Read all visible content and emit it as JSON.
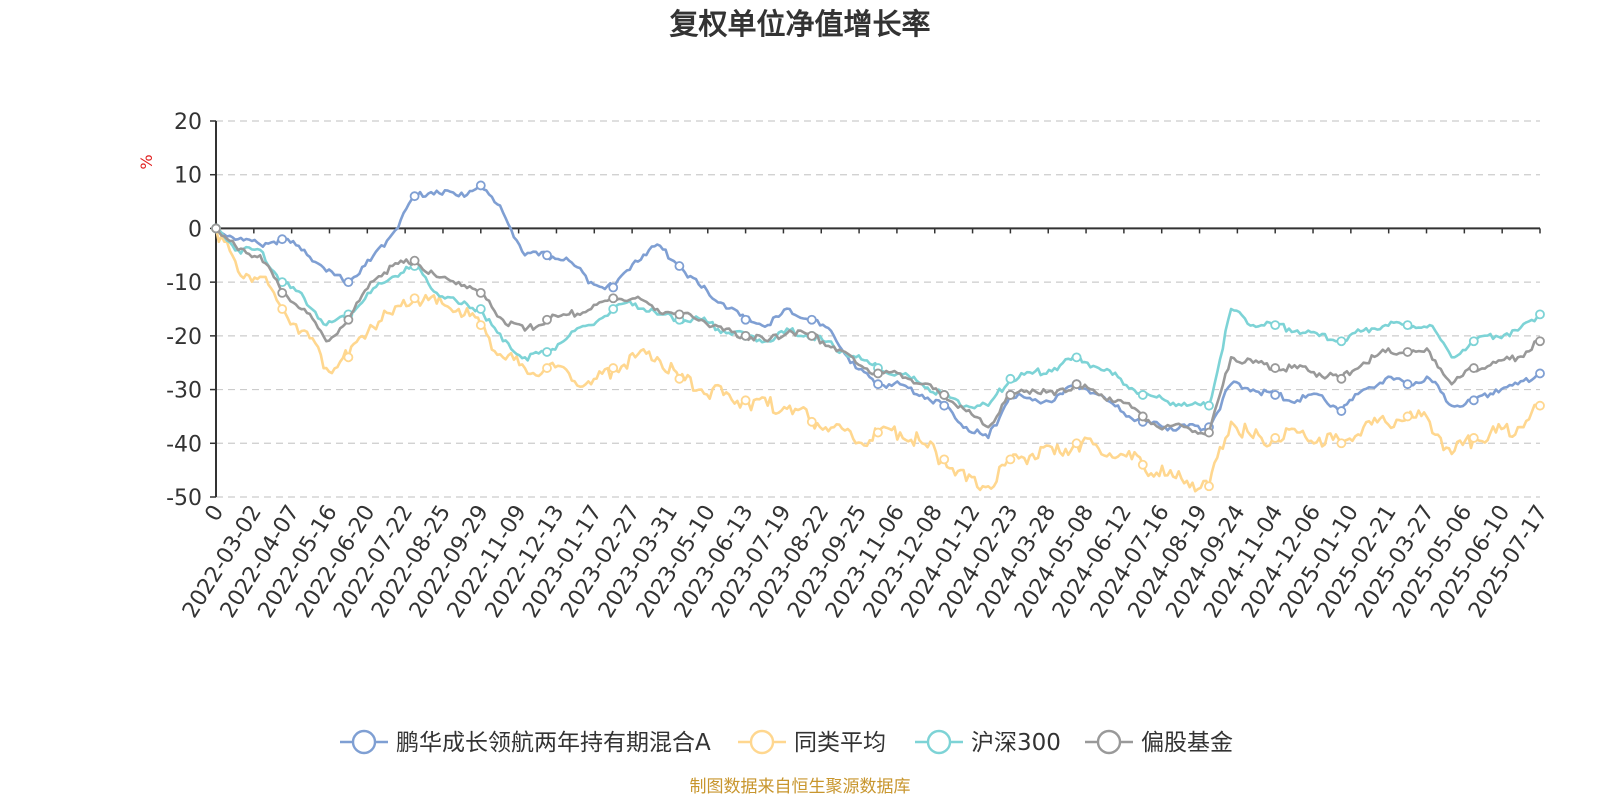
{
  "chart_data": {
    "type": "line",
    "title": "复权单位净值增长率",
    "ylabel": "%",
    "ylim": [
      -50,
      20
    ],
    "yticks": [
      20,
      10,
      0,
      -10,
      -20,
      -30,
      -40,
      -50
    ],
    "grid": true,
    "legend_position": "bottom",
    "x_tick_labels": [
      "0",
      "2022-03-02",
      "2022-04-07",
      "2022-05-16",
      "2022-06-20",
      "2022-07-22",
      "2022-08-25",
      "2022-09-29",
      "2022-11-09",
      "2022-12-13",
      "2023-01-17",
      "2023-02-27",
      "2023-03-31",
      "2023-05-10",
      "2023-06-13",
      "2023-07-19",
      "2023-08-22",
      "2023-09-25",
      "2023-11-06",
      "2023-12-08",
      "2024-01-12",
      "2024-02-23",
      "2024-03-28",
      "2024-05-08",
      "2024-06-12",
      "2024-07-16",
      "2024-08-19",
      "2024-09-24",
      "2024-11-04",
      "2024-12-06",
      "2025-01-10",
      "2025-02-21",
      "2025-03-27",
      "2025-05-06",
      "2025-06-10",
      "2025-07-17"
    ],
    "series": [
      {
        "name": "鹏华成长领航两年持有期混合A",
        "color": "#7f9fd3",
        "values": [
          0,
          -2,
          -3,
          -2,
          -4,
          -8,
          -10,
          -6,
          -1,
          6,
          7,
          6,
          8,
          3,
          -5,
          -5,
          -6,
          -10,
          -11,
          -6,
          -3,
          -7,
          -11,
          -14,
          -17,
          -18,
          -15,
          -17,
          -20,
          -26,
          -29,
          -29,
          -31,
          -33,
          -37,
          -39,
          -31,
          -32,
          -32,
          -29,
          -31,
          -34,
          -36,
          -37,
          -37,
          -37,
          -29,
          -30,
          -31,
          -32,
          -31,
          -34,
          -30,
          -28,
          -29,
          -28,
          -33,
          -32,
          -30,
          -29,
          -27
        ]
      },
      {
        "name": "同类平均",
        "color": "#ffd78f",
        "values": [
          0,
          -8,
          -9,
          -15,
          -19,
          -26,
          -24,
          -18,
          -16,
          -13,
          -14,
          -15,
          -18,
          -24,
          -26,
          -26,
          -27,
          -29,
          -26,
          -24,
          -24,
          -28,
          -30,
          -31,
          -32,
          -33,
          -33,
          -36,
          -37,
          -40,
          -38,
          -38,
          -40,
          -43,
          -47,
          -48,
          -43,
          -42,
          -42,
          -40,
          -41,
          -42,
          -44,
          -46,
          -47,
          -48,
          -36,
          -39,
          -39,
          -38,
          -39,
          -40,
          -37,
          -36,
          -35,
          -36,
          -42,
          -39,
          -38,
          -37,
          -33
        ]
      },
      {
        "name": "沪深300",
        "color": "#7dd3d6",
        "values": [
          0,
          -4,
          -4,
          -10,
          -13,
          -18,
          -16,
          -12,
          -9,
          -7,
          -12,
          -14,
          -15,
          -21,
          -24,
          -23,
          -20,
          -18,
          -15,
          -14,
          -16,
          -17,
          -17,
          -19,
          -20,
          -21,
          -19,
          -20,
          -22,
          -24,
          -26,
          -27,
          -29,
          -31,
          -33,
          -33,
          -28,
          -27,
          -26,
          -24,
          -26,
          -28,
          -31,
          -32,
          -33,
          -33,
          -15,
          -18,
          -18,
          -19,
          -20,
          -21,
          -19,
          -18,
          -18,
          -18,
          -24,
          -21,
          -20,
          -19,
          -16
        ]
      },
      {
        "name": "偏股基金",
        "color": "#999999",
        "values": [
          0,
          -4,
          -5,
          -12,
          -15,
          -21,
          -17,
          -10,
          -7,
          -6,
          -9,
          -10,
          -12,
          -17,
          -19,
          -17,
          -16,
          -15,
          -13,
          -13,
          -15,
          -16,
          -17,
          -19,
          -20,
          -21,
          -19,
          -20,
          -22,
          -25,
          -27,
          -27,
          -29,
          -31,
          -34,
          -37,
          -31,
          -30,
          -31,
          -29,
          -31,
          -32,
          -35,
          -37,
          -37,
          -38,
          -24,
          -25,
          -26,
          -26,
          -27,
          -28,
          -25,
          -23,
          -23,
          -23,
          -29,
          -26,
          -25,
          -24,
          -21
        ]
      }
    ]
  },
  "footer": {
    "source": "制图数据来自恒生聚源数据库"
  }
}
